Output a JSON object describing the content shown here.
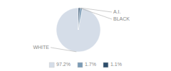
{
  "chart_data": {
    "type": "pie",
    "categories": [
      "WHITE",
      "A.I.",
      "BLACK"
    ],
    "values": [
      97.2,
      1.7,
      1.1
    ],
    "colors": [
      "#d5dde8",
      "#7a9ab5",
      "#2d4d6b"
    ],
    "value_labels": [
      "97.2%",
      "1.7%",
      "1.1%"
    ],
    "legend": "bottom"
  }
}
